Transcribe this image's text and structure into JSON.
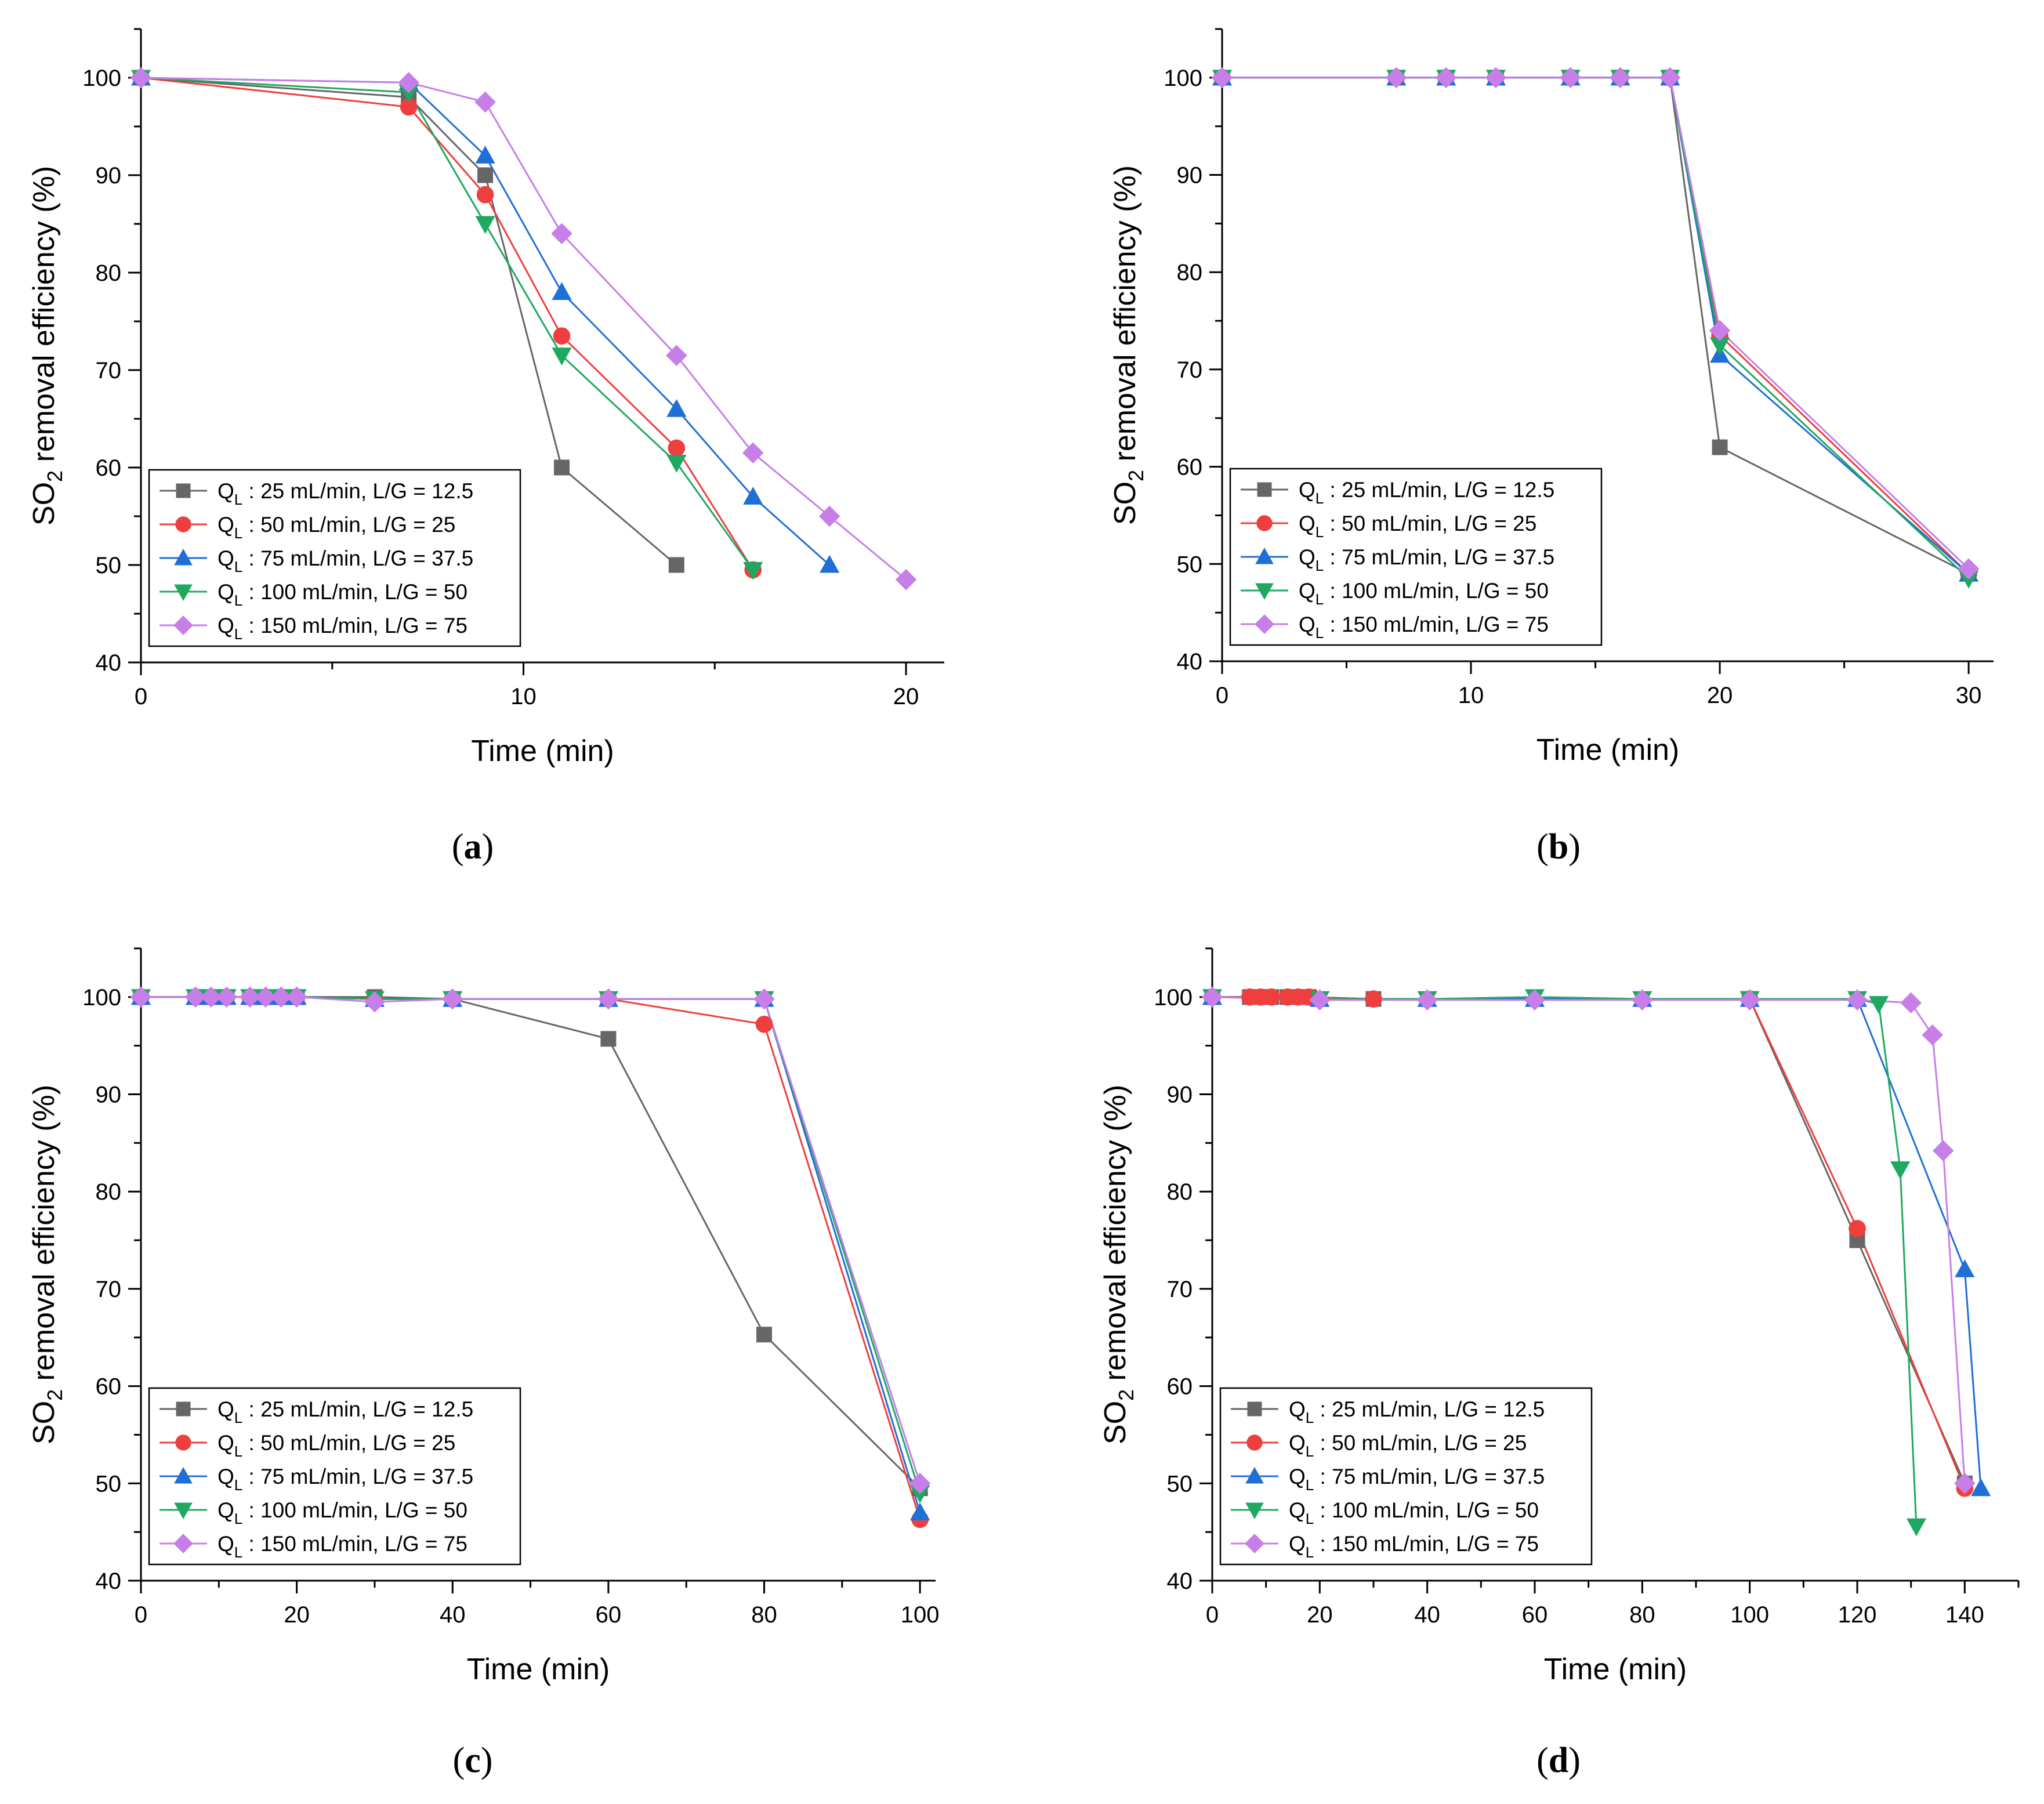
{
  "chart_data": [
    {
      "type": "line",
      "panel_label": "(a)",
      "xlabel": "Time (min)",
      "ylabel": "SO2 removal efficiency (%)",
      "xlim": [
        0,
        21
      ],
      "ylim": [
        40,
        105
      ],
      "xticks": [
        0,
        10,
        20
      ],
      "yticks": [
        40,
        50,
        60,
        70,
        80,
        90,
        100
      ],
      "legend_position": "bottom-left",
      "series": [
        {
          "name": "Q_L : 25 mL/min, L/G = 12.5",
          "sub": "L",
          "prefix": "Q",
          "suffix": " : 25 mL/min, L/G = 12.5",
          "color": "#666666",
          "marker": "square",
          "x": [
            0,
            7,
            9,
            11,
            14
          ],
          "y": [
            100,
            98,
            90,
            60,
            50
          ]
        },
        {
          "name": "Q_L : 50 mL/min, L/G = 25",
          "sub": "L",
          "prefix": "Q",
          "suffix": " : 50 mL/min, L/G = 25",
          "color": "#ef3e3e",
          "marker": "circle",
          "x": [
            0,
            7,
            9,
            11,
            14,
            16
          ],
          "y": [
            100,
            97,
            88,
            73.5,
            62,
            49.5
          ]
        },
        {
          "name": "Q_L : 75 mL/min, L/G = 37.5",
          "sub": "L",
          "prefix": "Q",
          "suffix": " : 75 mL/min, L/G = 37.5",
          "color": "#1f6fd6",
          "marker": "triangle-up",
          "x": [
            0,
            7,
            9,
            11,
            14,
            16,
            18
          ],
          "y": [
            100,
            99.5,
            92,
            78,
            66,
            57,
            50
          ]
        },
        {
          "name": "Q_L : 100 mL/min, L/G = 50",
          "sub": "L",
          "prefix": "Q",
          "suffix": " : 100 mL/min, L/G = 50",
          "color": "#1fa860",
          "marker": "triangle-down",
          "x": [
            0,
            7,
            9,
            11,
            14,
            16
          ],
          "y": [
            100,
            98.5,
            85,
            71.5,
            60.5,
            49.5
          ]
        },
        {
          "name": "Q_L : 150 mL/min, L/G = 75",
          "sub": "L",
          "prefix": "Q",
          "suffix": " : 150 mL/min, L/G = 75",
          "color": "#c77ee8",
          "marker": "diamond",
          "x": [
            0,
            7,
            9,
            11,
            14,
            16,
            18,
            20
          ],
          "y": [
            100,
            99.5,
            97.5,
            84,
            71.5,
            61.5,
            55,
            48.5
          ]
        }
      ]
    },
    {
      "type": "line",
      "panel_label": "(b)",
      "xlabel": "Time (min)",
      "ylabel": "SO2 removal efficiency (%)",
      "xlim": [
        0,
        31
      ],
      "ylim": [
        40,
        105
      ],
      "xticks": [
        0,
        10,
        20,
        30
      ],
      "yticks": [
        40,
        50,
        60,
        70,
        80,
        90,
        100
      ],
      "legend_position": "bottom-left",
      "series": [
        {
          "name": "Q_L : 25 mL/min, L/G = 12.5",
          "sub": "L",
          "prefix": "Q",
          "suffix": " : 25 mL/min, L/G = 12.5",
          "color": "#666666",
          "marker": "square",
          "x": [
            0,
            7,
            9,
            11,
            14,
            16,
            18,
            20,
            30
          ],
          "y": [
            100,
            100,
            100,
            100,
            100,
            100,
            100,
            62,
            49
          ]
        },
        {
          "name": "Q_L : 50 mL/min, L/G = 25",
          "sub": "L",
          "prefix": "Q",
          "suffix": " : 50 mL/min, L/G = 25",
          "color": "#ef3e3e",
          "marker": "circle",
          "x": [
            0,
            7,
            9,
            11,
            14,
            16,
            18,
            20,
            30
          ],
          "y": [
            100,
            100,
            100,
            100,
            100,
            100,
            100,
            73.5,
            49
          ]
        },
        {
          "name": "Q_L : 75 mL/min, L/G = 37.5",
          "sub": "L",
          "prefix": "Q",
          "suffix": " : 75 mL/min, L/G = 37.5",
          "color": "#1f6fd6",
          "marker": "triangle-up",
          "x": [
            0,
            7,
            9,
            11,
            14,
            16,
            18,
            20,
            30
          ],
          "y": [
            100,
            100,
            100,
            100,
            100,
            100,
            100,
            71.5,
            49
          ]
        },
        {
          "name": "Q_L : 100 mL/min, L/G = 50",
          "sub": "L",
          "prefix": "Q",
          "suffix": " : 100 mL/min, L/G = 50",
          "color": "#1fa860",
          "marker": "triangle-down",
          "x": [
            0,
            7,
            9,
            11,
            14,
            16,
            18,
            20,
            30
          ],
          "y": [
            100,
            100,
            100,
            100,
            100,
            100,
            100,
            72.5,
            48.5
          ]
        },
        {
          "name": "Q_L : 150 mL/min, L/G = 75",
          "sub": "L",
          "prefix": "Q",
          "suffix": " : 150 mL/min, L/G = 75",
          "color": "#c77ee8",
          "marker": "diamond",
          "x": [
            0,
            7,
            9,
            11,
            14,
            16,
            18,
            20,
            30
          ],
          "y": [
            100,
            100,
            100,
            100,
            100,
            100,
            100,
            74,
            49.5
          ]
        }
      ]
    },
    {
      "type": "line",
      "panel_label": "(c)",
      "xlabel": "Time (min)",
      "ylabel": "SO2 removal efficiency (%)",
      "xlim": [
        0,
        102
      ],
      "ylim": [
        40,
        105
      ],
      "xticks": [
        0,
        20,
        40,
        60,
        80,
        100
      ],
      "yticks": [
        40,
        50,
        60,
        70,
        80,
        90,
        100
      ],
      "legend_position": "bottom-left",
      "series": [
        {
          "name": "Q_L : 25 mL/min, L/G = 12.5",
          "sub": "L",
          "prefix": "Q",
          "suffix": " : 25 mL/min, L/G = 12.5",
          "color": "#666666",
          "marker": "square",
          "x": [
            0,
            7,
            9,
            11,
            14,
            16,
            18,
            20,
            30,
            40,
            60,
            80,
            100
          ],
          "y": [
            100,
            100,
            100,
            100,
            100,
            100,
            100,
            100,
            100,
            99.8,
            95.7,
            65.3,
            49.5
          ]
        },
        {
          "name": "Q_L : 50 mL/min, L/G = 25",
          "sub": "L",
          "prefix": "Q",
          "suffix": " : 50 mL/min, L/G = 25",
          "color": "#ef3e3e",
          "marker": "circle",
          "x": [
            0,
            7,
            9,
            11,
            14,
            16,
            18,
            20,
            30,
            40,
            60,
            80,
            100
          ],
          "y": [
            100,
            100,
            100,
            100,
            100,
            100,
            100,
            100,
            99.8,
            99.8,
            99.8,
            97.2,
            46.3
          ]
        },
        {
          "name": "Q_L : 75 mL/min, L/G = 37.5",
          "sub": "L",
          "prefix": "Q",
          "suffix": " : 75 mL/min, L/G = 37.5",
          "color": "#1f6fd6",
          "marker": "triangle-up",
          "x": [
            0,
            7,
            9,
            11,
            14,
            16,
            18,
            20,
            30,
            40,
            60,
            80,
            100
          ],
          "y": [
            100,
            100,
            100,
            100,
            100,
            100,
            100,
            100,
            99.8,
            99.8,
            99.8,
            99.8,
            47
          ]
        },
        {
          "name": "Q_L : 100 mL/min, L/G = 50",
          "sub": "L",
          "prefix": "Q",
          "suffix": " : 100 mL/min, L/G = 50",
          "color": "#1fa860",
          "marker": "triangle-down",
          "x": [
            0,
            7,
            9,
            11,
            14,
            16,
            18,
            20,
            30,
            40,
            60,
            80,
            100
          ],
          "y": [
            100,
            100,
            100,
            100,
            100,
            100,
            100,
            100,
            99.8,
            99.8,
            99.8,
            99.8,
            49
          ]
        },
        {
          "name": "Q_L : 150 mL/min, L/G = 75",
          "sub": "L",
          "prefix": "Q",
          "suffix": " : 150 mL/min, L/G = 75",
          "color": "#c77ee8",
          "marker": "diamond",
          "x": [
            0,
            7,
            9,
            11,
            14,
            16,
            18,
            20,
            30,
            40,
            60,
            80,
            100
          ],
          "y": [
            100,
            100,
            100,
            100,
            100,
            100,
            100,
            100,
            99.5,
            99.8,
            99.8,
            99.8,
            50
          ]
        }
      ]
    },
    {
      "type": "line",
      "panel_label": "(d)",
      "xlabel": "Time (min)",
      "ylabel": "SO2 removal efficiency (%)",
      "xlim": [
        0,
        150
      ],
      "ylim": [
        40,
        105
      ],
      "xticks": [
        0,
        20,
        40,
        60,
        80,
        100,
        120,
        140
      ],
      "yticks": [
        40,
        50,
        60,
        70,
        80,
        90,
        100
      ],
      "legend_position": "bottom-left",
      "series": [
        {
          "name": "Q_L : 25 mL/min, L/G = 12.5",
          "sub": "L",
          "prefix": "Q",
          "suffix": " : 25 mL/min, L/G = 12.5",
          "color": "#666666",
          "marker": "square",
          "x": [
            0,
            7,
            9,
            11,
            14,
            16,
            18,
            30,
            100,
            120,
            140
          ],
          "y": [
            100,
            100,
            100,
            100,
            100,
            100,
            100,
            99.8,
            99.8,
            75,
            50
          ]
        },
        {
          "name": "Q_L : 50 mL/min, L/G = 25",
          "sub": "L",
          "prefix": "Q",
          "suffix": " : 50 mL/min, L/G = 25",
          "color": "#ef3e3e",
          "marker": "circle",
          "x": [
            0,
            7,
            9,
            11,
            14,
            16,
            18,
            30,
            100,
            120,
            140
          ],
          "y": [
            100,
            100,
            100,
            100,
            100,
            100,
            100,
            99.8,
            99.8,
            76.2,
            49.5
          ]
        },
        {
          "name": "Q_L : 75 mL/min, L/G = 37.5",
          "sub": "L",
          "prefix": "Q",
          "suffix": " : 75 mL/min, L/G = 37.5",
          "color": "#1f6fd6",
          "marker": "triangle-up",
          "x": [
            0,
            20,
            40,
            60,
            80,
            100,
            120,
            140,
            143
          ],
          "y": [
            100,
            99.8,
            99.8,
            99.8,
            99.8,
            99.8,
            99.8,
            72,
            49.5
          ]
        },
        {
          "name": "Q_L : 100 mL/min, L/G = 50",
          "sub": "L",
          "prefix": "Q",
          "suffix": " : 100 mL/min, L/G = 50",
          "color": "#1fa860",
          "marker": "triangle-down",
          "x": [
            0,
            20,
            40,
            60,
            80,
            100,
            120,
            124,
            128,
            131
          ],
          "y": [
            100,
            99.8,
            99.8,
            100,
            99.8,
            99.8,
            99.8,
            99.3,
            82.3,
            45.6
          ]
        },
        {
          "name": "Q_L : 150 mL/min, L/G = 75",
          "sub": "L",
          "prefix": "Q",
          "suffix": " : 150 mL/min, L/G = 75",
          "color": "#c77ee8",
          "marker": "diamond",
          "x": [
            0,
            20,
            40,
            60,
            80,
            100,
            120,
            130,
            134,
            136,
            140
          ],
          "y": [
            100,
            99.7,
            99.7,
            99.7,
            99.7,
            99.7,
            99.7,
            99.4,
            96.1,
            84.2,
            50
          ]
        }
      ]
    }
  ]
}
